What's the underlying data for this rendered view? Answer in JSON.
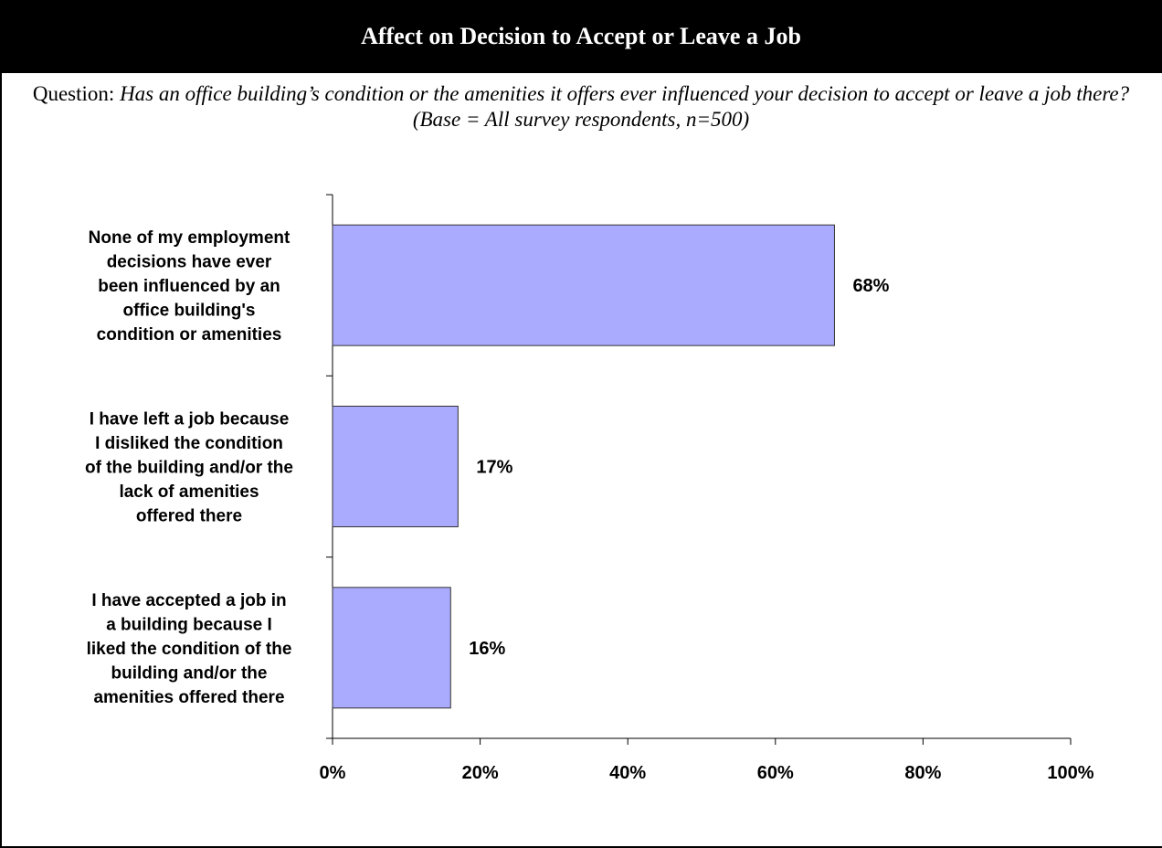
{
  "header": {
    "title": "Affect on Decision to Accept or Leave a Job"
  },
  "question": {
    "label": "Question:",
    "text": "Has an office building’s condition or the amenities it offers ever influenced your decision to accept or leave a job there?",
    "base": "(Base = All survey respondents, n=500)"
  },
  "colors": {
    "bar_fill": "#aaaaff",
    "bar_stroke": "#333333",
    "header_bg": "#000000"
  },
  "chart_data": {
    "type": "bar",
    "orientation": "horizontal",
    "categories": [
      [
        "None of my employment",
        "decisions have ever",
        "been influenced by an",
        "office building's",
        "condition or amenities"
      ],
      [
        "I have left a job because",
        "I disliked the condition",
        "of the building and/or the",
        "lack of amenities",
        "offered there"
      ],
      [
        "I have accepted a job in",
        "a building because I",
        "liked the condition of the",
        "building and/or the",
        "amenities offered there"
      ]
    ],
    "values": [
      68,
      17,
      16
    ],
    "data_labels": [
      "68%",
      "17%",
      "16%"
    ],
    "xlim": [
      0,
      100
    ],
    "xticks": [
      0,
      20,
      40,
      60,
      80,
      100
    ],
    "xtick_labels": [
      "0%",
      "20%",
      "40%",
      "60%",
      "80%",
      "100%"
    ],
    "grid": false,
    "legend": "none"
  }
}
